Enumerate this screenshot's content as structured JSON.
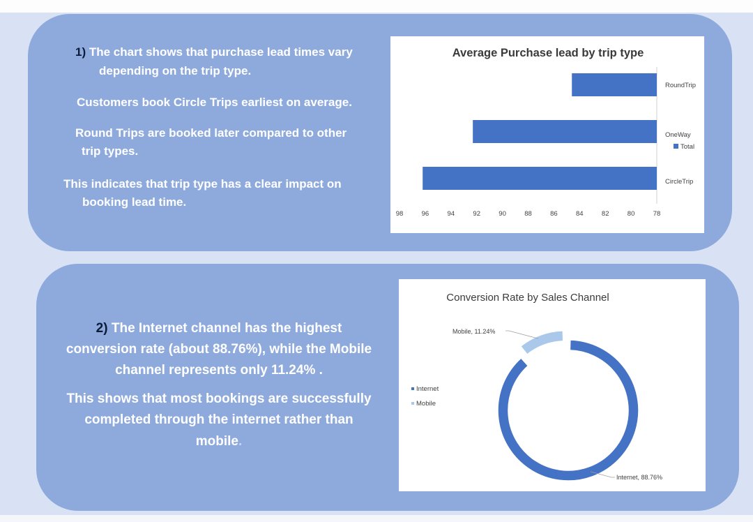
{
  "section1": {
    "number": "1)",
    "line1": "The chart shows that purchase lead times vary",
    "line2": "depending on the trip type.",
    "p2": "Customers book Circle Trips earliest on average.",
    "p3_line1": "Round Trips are booked later compared to other",
    "p3_line2": "trip types.",
    "p4_line1": "This indicates that trip type has a clear impact on",
    "p4_line2": "booking lead time."
  },
  "section2": {
    "number": "2)",
    "line1": "The Internet channel has the highest",
    "line2": "conversion rate (about 88.76%), while the Mobile",
    "line3": "channel represents only 11.24% .",
    "p2_line1": "This shows that most bookings are successfully",
    "p2_line2": "completed through the internet rather than",
    "p2_line3": "mobile",
    "p2_period": "."
  },
  "chart_data": [
    {
      "type": "bar",
      "orientation": "horizontal",
      "title": "Average Purchase lead by trip type",
      "categories": [
        "RoundTrip",
        "OneWay",
        "CircleTrip"
      ],
      "values": [
        84.6,
        92.3,
        96.2
      ],
      "series": [
        {
          "name": "Total",
          "values": [
            84.6,
            92.3,
            96.2
          ]
        }
      ],
      "xaxis_reversed": true,
      "xlim": [
        78,
        98
      ],
      "xticks": [
        "98",
        "96",
        "94",
        "92",
        "90",
        "88",
        "86",
        "84",
        "82",
        "80",
        "78"
      ],
      "legend_position": "right",
      "color": "#4472c4"
    },
    {
      "type": "pie",
      "subtype": "doughnut",
      "title": "Conversion Rate by Sales Channel",
      "categories": [
        "Internet",
        "Mobile"
      ],
      "values": [
        88.76,
        11.24
      ],
      "data_labels": [
        "Internet, 88.76%",
        "Mobile, 11.24%"
      ],
      "colors": [
        "#4472c4",
        "#a9c8ea"
      ],
      "legend_position": "left"
    }
  ]
}
